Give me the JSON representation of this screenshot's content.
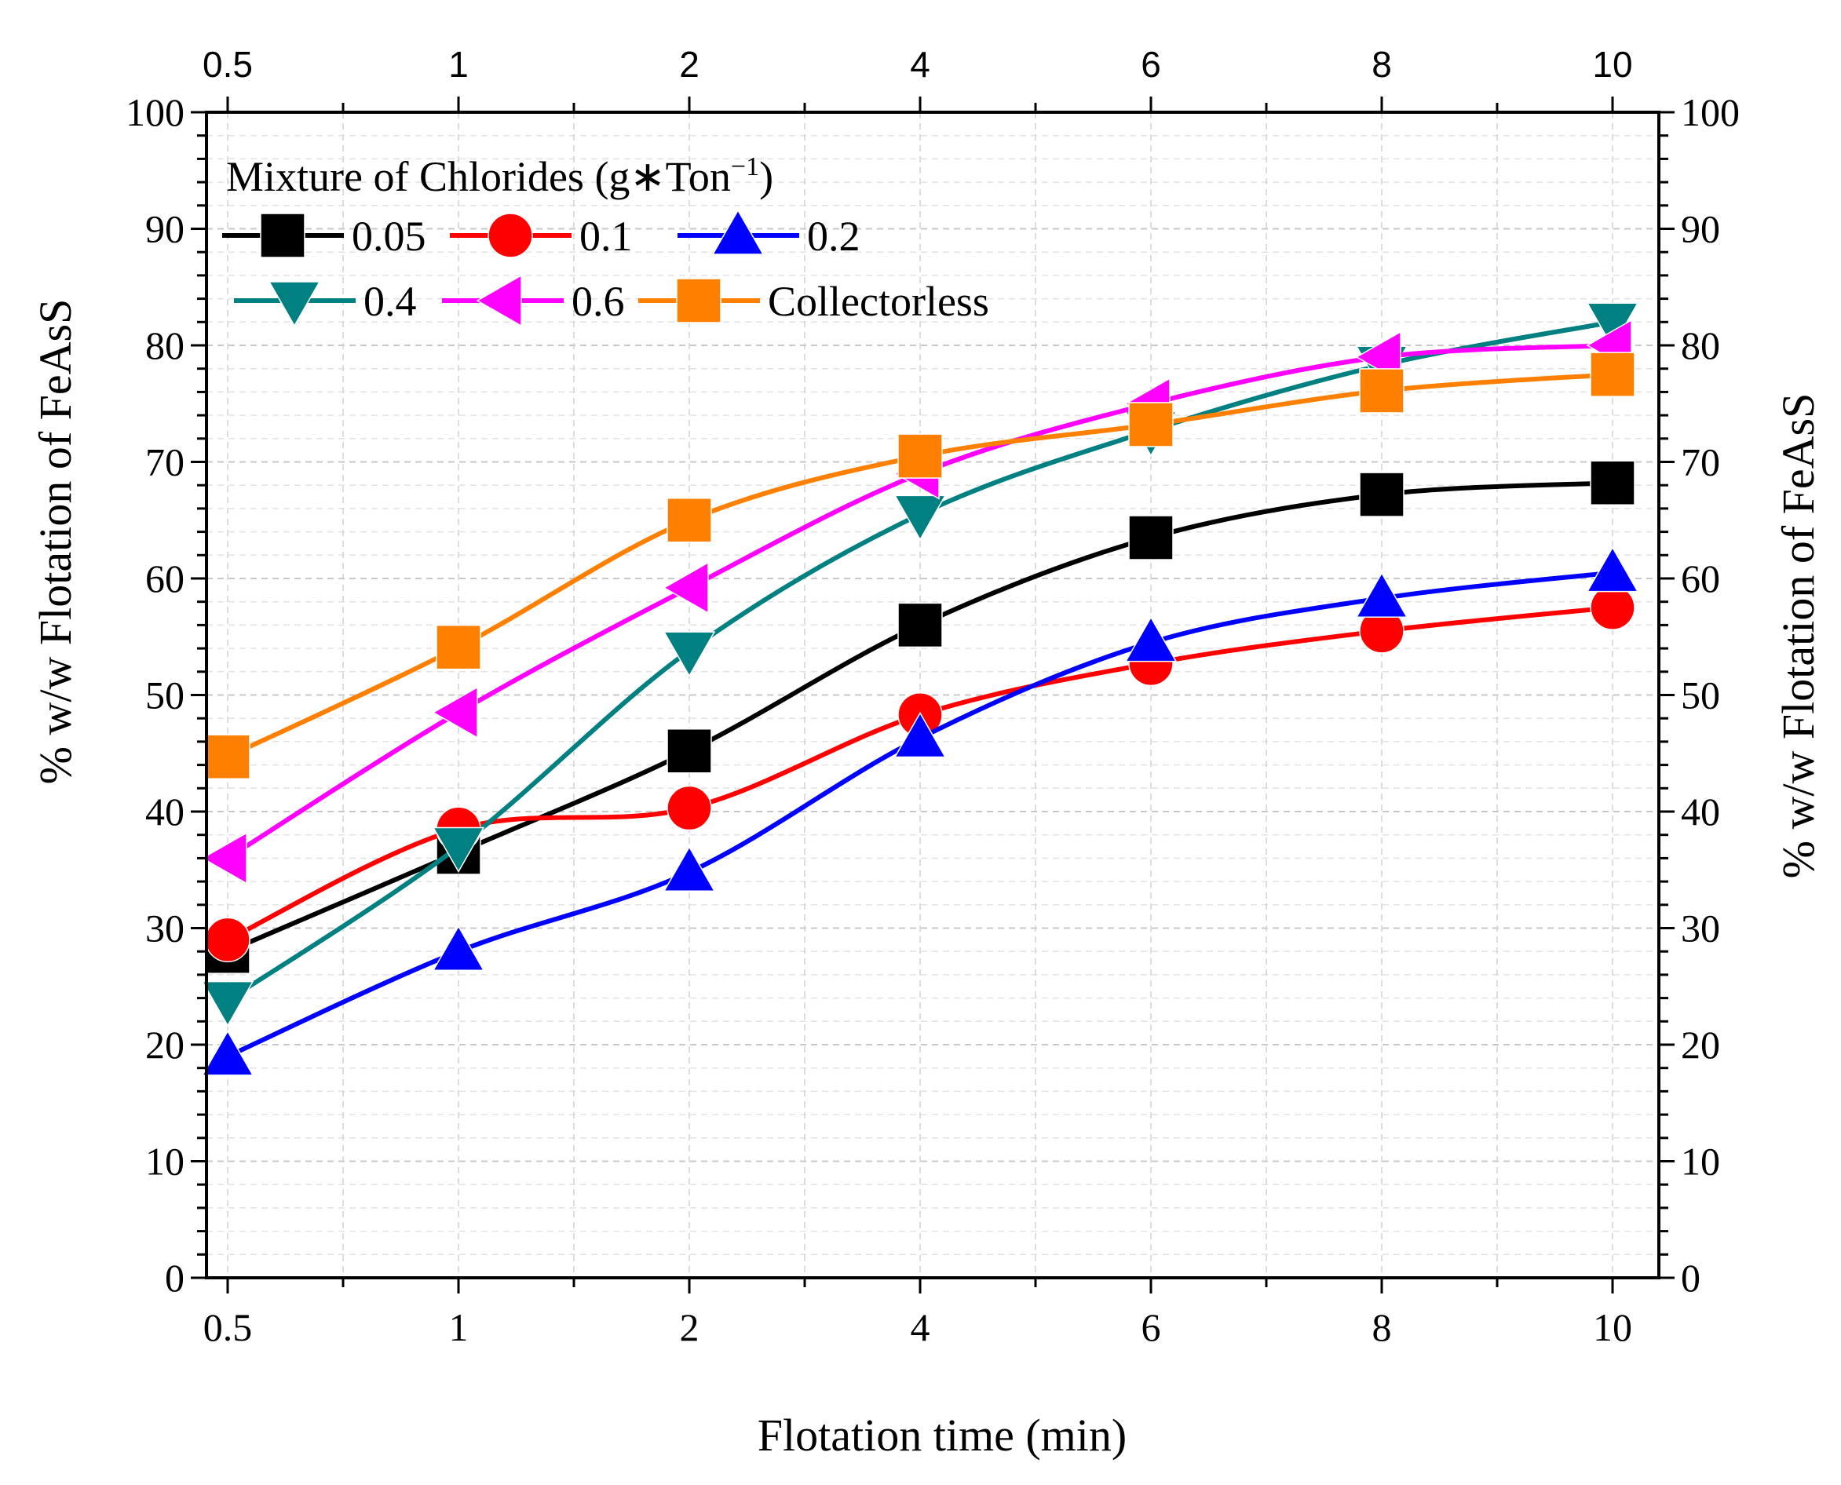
{
  "chart_data": {
    "type": "line",
    "x_categories": [
      "0.5",
      "1",
      "2",
      "4",
      "6",
      "8",
      "10"
    ],
    "xlabel": "Flotation time (min)",
    "ylabel_left": "% w/w  Flotation of FeAsS",
    "ylabel_right": "% w/w  Flotation of  FeAsS",
    "ylim": [
      0,
      100
    ],
    "yticks": [
      0,
      10,
      20,
      30,
      40,
      50,
      60,
      70,
      80,
      90,
      100
    ],
    "grid": true,
    "legend": {
      "title": "Mixture of Chlorides (g∗Ton",
      "title_sup": "−1",
      "title_end": ")",
      "placement": "top-left"
    },
    "series": [
      {
        "name": "0.05",
        "color": "#000000",
        "marker": "square",
        "values": [
          28,
          36.5,
          45.2,
          56,
          63.5,
          67.2,
          68.2
        ]
      },
      {
        "name": "0.1",
        "color": "#ff0000",
        "marker": "circle",
        "values": [
          29,
          38.5,
          40.3,
          48.3,
          52.7,
          55.5,
          57.5
        ]
      },
      {
        "name": "0.2",
        "color": "#0000ff",
        "marker": "triangle-up",
        "values": [
          19,
          28,
          34.8,
          46.3,
          54.5,
          58.3,
          60.5
        ]
      },
      {
        "name": "0.4",
        "color": "#008080",
        "marker": "triangle-down",
        "values": [
          23.8,
          37,
          53.8,
          65.5,
          72.7,
          78.3,
          82
        ]
      },
      {
        "name": "0.6",
        "color": "#ff00ff",
        "marker": "triangle-left",
        "values": [
          36,
          48.5,
          59.2,
          69,
          75,
          79,
          80
        ]
      },
      {
        "name": "Collectorless",
        "color": "#ff8000",
        "marker": "square",
        "values": [
          44.7,
          54.1,
          65,
          70.5,
          73.2,
          76.1,
          77.5
        ]
      }
    ]
  }
}
